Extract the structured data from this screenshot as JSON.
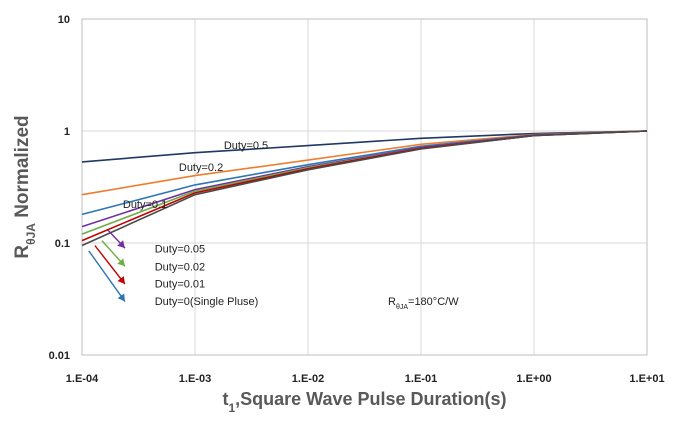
{
  "chart_data": {
    "type": "line",
    "xlabel": "t",
    "xlabel_sub": "1",
    "xlabel_rest": ",Square Wave Pulse Duration(s)",
    "ylabel": "R",
    "ylabel_sub": "θJA",
    "ylabel_rest": " Normalized",
    "x_scale": "log",
    "y_scale": "log",
    "xlim": [
      0.0001,
      10
    ],
    "ylim": [
      0.01,
      10
    ],
    "x_ticks": [
      {
        "value": 0.0001,
        "label": "1.E-04"
      },
      {
        "value": 0.001,
        "label": "1.E-03"
      },
      {
        "value": 0.01,
        "label": "1.E-02"
      },
      {
        "value": 0.1,
        "label": "1.E-01"
      },
      {
        "value": 1,
        "label": "1.E+00"
      },
      {
        "value": 10,
        "label": "1.E+01"
      }
    ],
    "y_ticks": [
      {
        "value": 0.01,
        "label": "0.01"
      },
      {
        "value": 0.1,
        "label": "0.1"
      },
      {
        "value": 1,
        "label": "1"
      },
      {
        "value": 10,
        "label": "10"
      }
    ],
    "grid": true,
    "legend": "none",
    "series": [
      {
        "name": "Duty=0.5",
        "color": "#1f3864",
        "points": [
          [
            0.0001,
            0.53
          ],
          [
            0.001,
            0.64
          ],
          [
            0.01,
            0.74
          ],
          [
            0.1,
            0.86
          ],
          [
            1,
            0.95
          ],
          [
            10,
            1.0
          ]
        ]
      },
      {
        "name": "Duty=0.2",
        "color": "#ed7d31",
        "points": [
          [
            0.0001,
            0.27
          ],
          [
            0.001,
            0.4
          ],
          [
            0.01,
            0.55
          ],
          [
            0.1,
            0.76
          ],
          [
            1,
            0.93
          ],
          [
            10,
            1.0
          ]
        ]
      },
      {
        "name": "Duty=0.1",
        "color": "#2e75b6",
        "points": [
          [
            0.0001,
            0.18
          ],
          [
            0.001,
            0.33
          ],
          [
            0.01,
            0.5
          ],
          [
            0.1,
            0.73
          ],
          [
            1,
            0.92
          ],
          [
            10,
            1.0
          ]
        ]
      },
      {
        "name": "Duty=0.05",
        "color": "#7030a0",
        "points": [
          [
            0.0001,
            0.14
          ],
          [
            0.001,
            0.3
          ],
          [
            0.01,
            0.48
          ],
          [
            0.1,
            0.71
          ],
          [
            1,
            0.92
          ],
          [
            10,
            1.0
          ]
        ]
      },
      {
        "name": "Duty=0.02",
        "color": "#70ad47",
        "points": [
          [
            0.0001,
            0.12
          ],
          [
            0.001,
            0.29
          ],
          [
            0.01,
            0.47
          ],
          [
            0.1,
            0.7
          ],
          [
            1,
            0.91
          ],
          [
            10,
            1.0
          ]
        ]
      },
      {
        "name": "Duty=0.01",
        "color": "#c00000",
        "points": [
          [
            0.0001,
            0.105
          ],
          [
            0.001,
            0.28
          ],
          [
            0.01,
            0.46
          ],
          [
            0.1,
            0.7
          ],
          [
            1,
            0.91
          ],
          [
            10,
            1.0
          ]
        ]
      },
      {
        "name": "Duty=0(Single Pluse)",
        "color": "#4a4a4a",
        "points": [
          [
            0.0001,
            0.095
          ],
          [
            0.001,
            0.27
          ],
          [
            0.01,
            0.45
          ],
          [
            0.1,
            0.69
          ],
          [
            1,
            0.91
          ],
          [
            10,
            1.0
          ]
        ]
      }
    ],
    "annotations": [
      {
        "text": "Duty=0.5",
        "x": 0.0018,
        "y": 0.69
      },
      {
        "text": "Duty=0.2",
        "x": 0.00072,
        "y": 0.44
      },
      {
        "text": "Duty=0.1",
        "x": 0.00023,
        "y": 0.205
      },
      {
        "text": "Duty=0.05",
        "x": 0.00044,
        "y": 0.082
      },
      {
        "text": "Duty=0.02",
        "x": 0.00044,
        "y": 0.057
      },
      {
        "text": "Duty=0.01",
        "x": 0.00044,
        "y": 0.04
      },
      {
        "text": "Duty=0(Single Pluse)",
        "x": 0.00044,
        "y": 0.028
      }
    ],
    "arrows": [
      {
        "from": [
          0.00017,
          0.13
        ],
        "to": [
          0.00024,
          0.09
        ],
        "color": "#7030a0"
      },
      {
        "from": [
          0.00015,
          0.105
        ],
        "to": [
          0.00024,
          0.062
        ],
        "color": "#70ad47"
      },
      {
        "from": [
          0.00013,
          0.095
        ],
        "to": [
          0.00024,
          0.043
        ],
        "color": "#c00000"
      },
      {
        "from": [
          0.000115,
          0.085
        ],
        "to": [
          0.00024,
          0.03
        ],
        "color": "#2e75b6"
      }
    ],
    "note": {
      "main": "R",
      "sub": "θJA",
      "rest": "=180°C/W"
    }
  }
}
